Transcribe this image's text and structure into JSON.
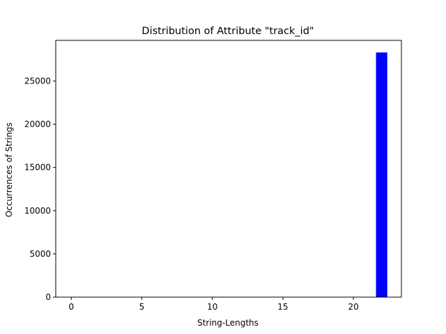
{
  "chart_data": {
    "type": "bar",
    "title": "Distribution of Attribute \"track_id\"",
    "xlabel": "String-Lengths",
    "ylabel": "Occurrences of Strings",
    "x": [
      22
    ],
    "values": [
      28300
    ],
    "bar_width": 0.8,
    "bar_color": "#0000ff",
    "xlim": [
      -1.1,
      23.4
    ],
    "ylim": [
      0,
      29700
    ],
    "xticks": [
      0,
      5,
      10,
      15,
      20
    ],
    "yticks": [
      0,
      5000,
      10000,
      15000,
      20000,
      25000
    ],
    "grid": false
  }
}
